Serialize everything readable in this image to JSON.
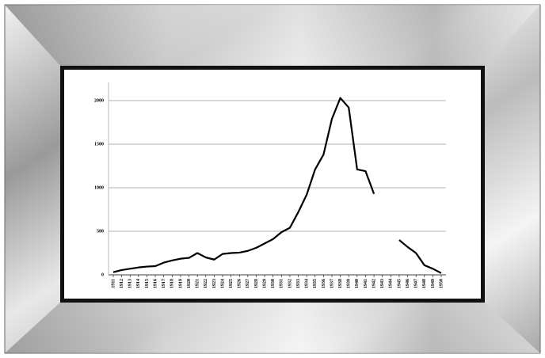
{
  "chart_data": {
    "type": "line",
    "categories": [
      "1911",
      "1912",
      "1913",
      "1914",
      "1915",
      "1916",
      "1917",
      "1918",
      "1919",
      "1920",
      "1921",
      "1922",
      "1923",
      "1924",
      "1925",
      "1926",
      "1927",
      "1928",
      "1929",
      "1930",
      "1931",
      "1932",
      "1933",
      "1934",
      "1935",
      "1936",
      "1937",
      "1938",
      "1939",
      "1940",
      "1941",
      "1942",
      "1943",
      "1944",
      "1945",
      "1946",
      "1947",
      "1948",
      "1949",
      "1950"
    ],
    "values": [
      30,
      55,
      70,
      85,
      95,
      100,
      140,
      165,
      185,
      195,
      250,
      200,
      175,
      240,
      250,
      255,
      275,
      310,
      360,
      410,
      490,
      540,
      720,
      920,
      1210,
      1380,
      1790,
      2030,
      1920,
      1210,
      1190,
      930,
      null,
      null,
      400,
      320,
      250,
      110,
      70,
      20
    ],
    "color": "#000000",
    "ylim": [
      0,
      2100
    ],
    "yticks": [
      0,
      500,
      1000,
      1500,
      2000
    ],
    "grid": true
  }
}
